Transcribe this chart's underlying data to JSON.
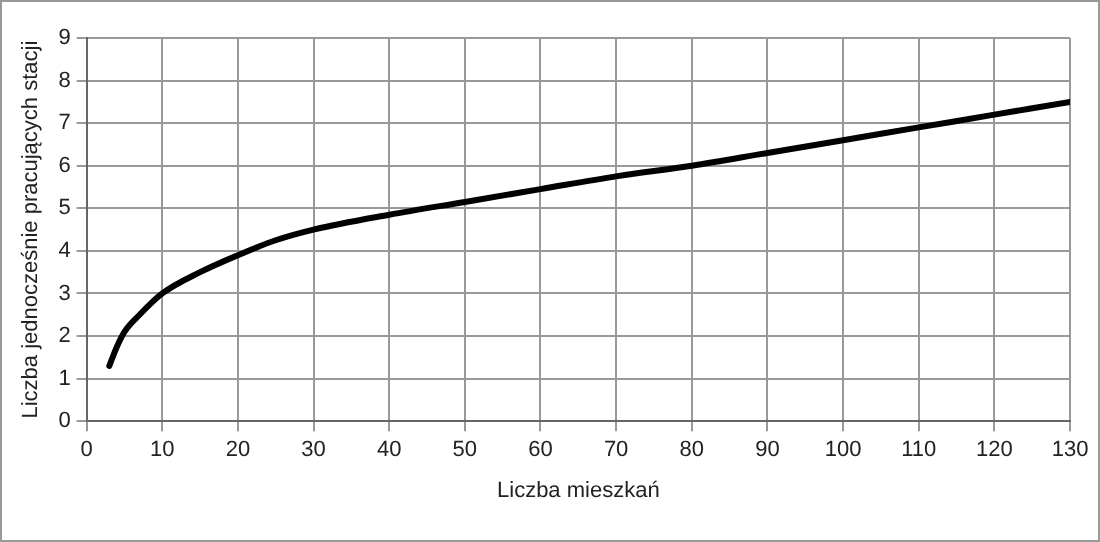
{
  "chart_data": {
    "type": "line",
    "xlabel": "Liczba mieszkań",
    "ylabel": "Liczba jednocześnie pracujących stacji",
    "x": [
      3,
      4,
      5,
      7,
      10,
      15,
      20,
      25,
      30,
      40,
      50,
      60,
      70,
      80,
      90,
      100,
      110,
      120,
      130
    ],
    "series": [
      {
        "color": "#000000",
        "values": [
          1.3,
          1.75,
          2.1,
          2.5,
          3.0,
          3.5,
          3.9,
          4.25,
          4.5,
          4.85,
          5.15,
          5.45,
          5.75,
          6.0,
          6.3,
          6.6,
          6.9,
          7.2,
          7.5
        ]
      }
    ],
    "xlim": [
      0,
      130
    ],
    "xticks": [
      0,
      10,
      20,
      30,
      40,
      50,
      60,
      70,
      80,
      90,
      100,
      110,
      120,
      130
    ],
    "ylim": [
      0,
      9
    ],
    "yticks": [
      0,
      1,
      2,
      3,
      4,
      5,
      6,
      7,
      8,
      9
    ],
    "grid": true,
    "legend": false,
    "marker": "none",
    "line_style": "solid"
  }
}
